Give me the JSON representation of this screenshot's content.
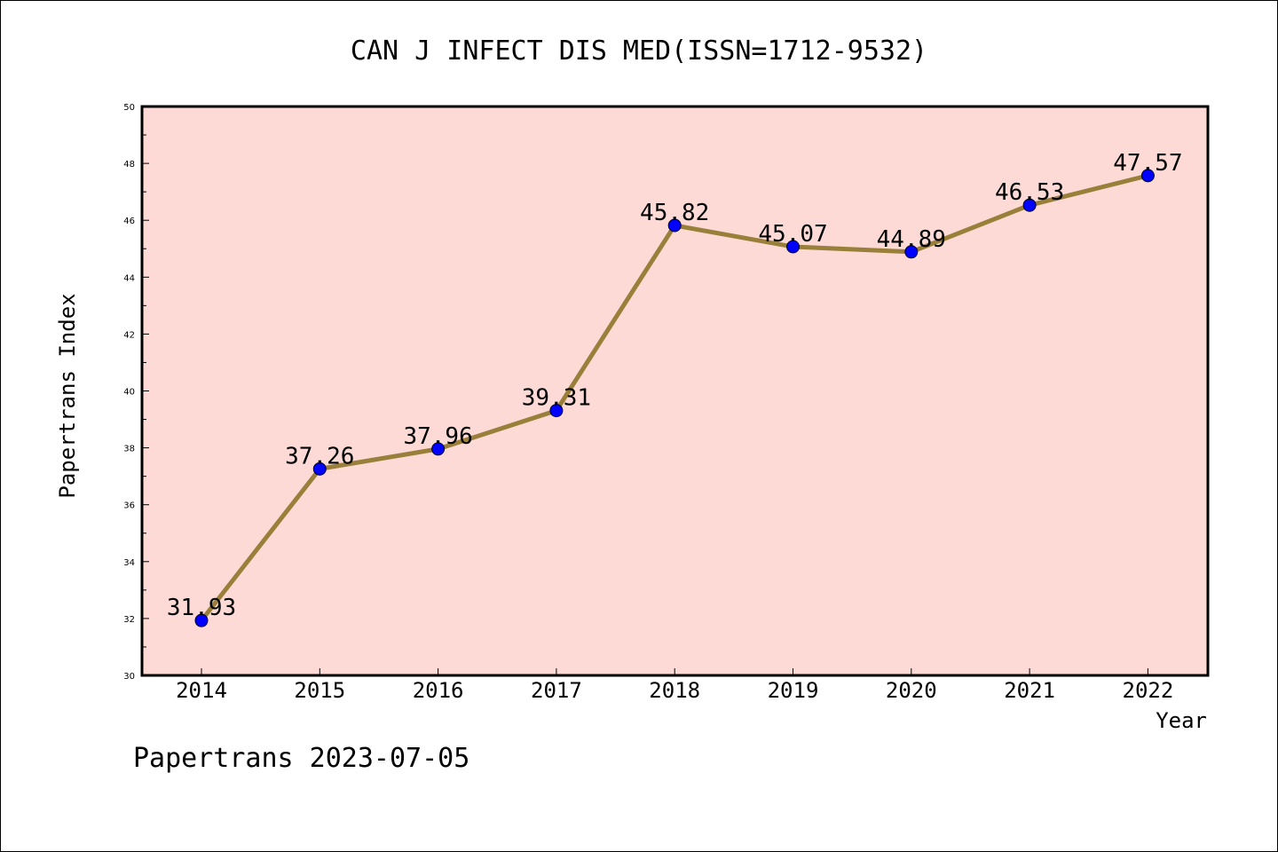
{
  "chart_data": {
    "type": "line",
    "title": "CAN J INFECT DIS MED(ISSN=1712-9532)",
    "xlabel": "Year",
    "ylabel": "Papertrans Index",
    "categories": [
      "2014",
      "2015",
      "2016",
      "2017",
      "2018",
      "2019",
      "2020",
      "2021",
      "2022"
    ],
    "series": [
      {
        "values": [
          31.93,
          37.26,
          37.96,
          39.31,
          45.82,
          45.07,
          44.89,
          46.53,
          47.57
        ],
        "labels": [
          "31.93",
          "37.26",
          "37.96",
          "39.31",
          "45.82",
          "45.07",
          "44.89",
          "46.53",
          "47.57"
        ]
      }
    ],
    "ylim": [
      30,
      50
    ],
    "yticks": [
      "30",
      "32",
      "34",
      "36",
      "38",
      "40",
      "42",
      "44",
      "46",
      "48",
      "50"
    ],
    "grid": false,
    "colors": {
      "plot_background": "#fddad6",
      "line": "#9a7f3a",
      "marker": "#0000ff"
    }
  },
  "footer": "Papertrans 2023-07-05"
}
